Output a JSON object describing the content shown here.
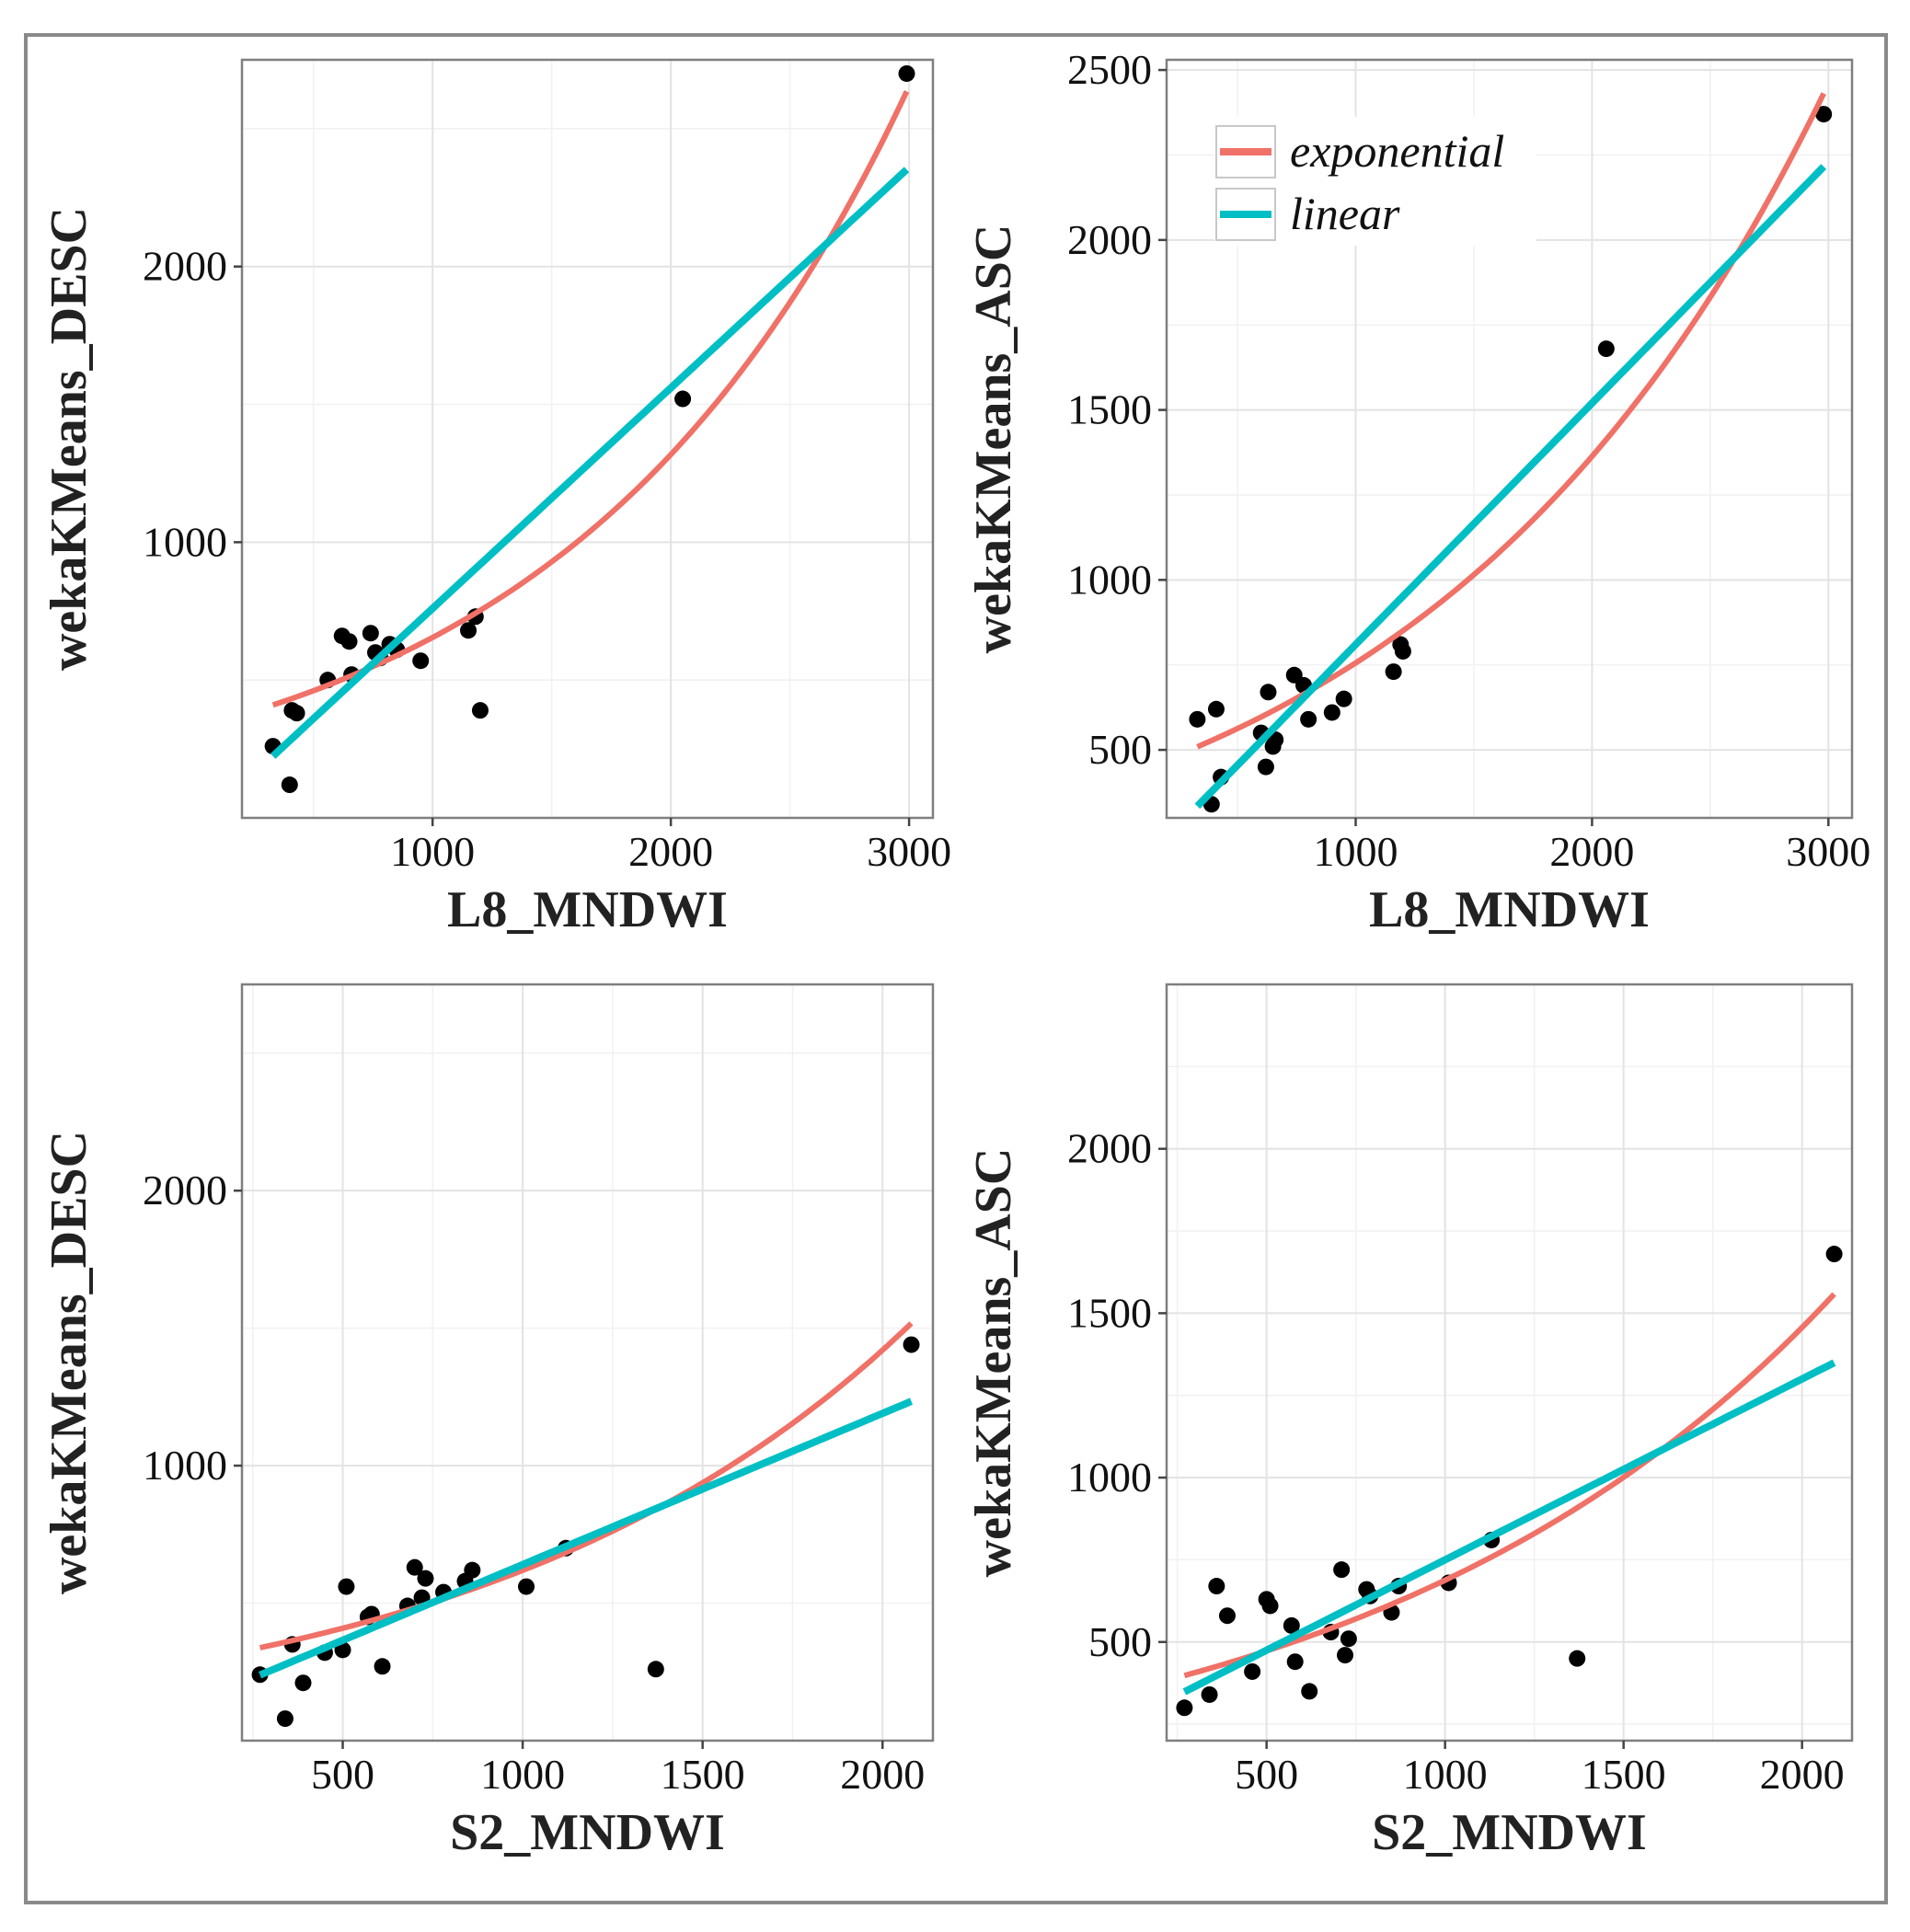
{
  "colors": {
    "exponential": "#f07167",
    "linear": "#00bfc4",
    "points": "#000000",
    "grid": "#e3e3e3",
    "panel_border": "#7f7f7f",
    "figure_border": "#8a8a8a"
  },
  "legend": {
    "placement": "top-left of top-right panel",
    "entries": [
      {
        "name": "exponential",
        "color": "#f07167"
      },
      {
        "name": "linear",
        "color": "#00bfc4"
      }
    ]
  },
  "chart_data": [
    {
      "type": "scatter",
      "xlabel": "L8_MNDWI",
      "ylabel": "wekaKMeans_DESC",
      "xlim": [
        200,
        3100
      ],
      "ylim": [
        0,
        2750
      ],
      "xticks": [
        1000,
        2000,
        3000
      ],
      "yticks": [
        1000,
        2000
      ],
      "grid": true,
      "points": [
        [
          330,
          260
        ],
        [
          400,
          120
        ],
        [
          410,
          390
        ],
        [
          430,
          380
        ],
        [
          560,
          500
        ],
        [
          620,
          660
        ],
        [
          650,
          640
        ],
        [
          660,
          520
        ],
        [
          740,
          670
        ],
        [
          760,
          600
        ],
        [
          780,
          580
        ],
        [
          820,
          630
        ],
        [
          850,
          610
        ],
        [
          950,
          570
        ],
        [
          1150,
          680
        ],
        [
          1180,
          730
        ],
        [
          1200,
          390
        ],
        [
          2050,
          1520
        ],
        [
          2990,
          2700
        ]
      ],
      "series": [
        {
          "name": "exponential",
          "fit": "exponential",
          "a": 325,
          "b": 0.0007,
          "x_range": [
            330,
            2990
          ]
        },
        {
          "name": "linear",
          "fit": "linear",
          "slope": 0.8,
          "intercept": -40,
          "x_range": [
            330,
            2990
          ]
        }
      ]
    },
    {
      "type": "scatter",
      "xlabel": "L8_MNDWI",
      "ylabel": "wekaKMeans_ASC",
      "xlim": [
        200,
        3100
      ],
      "ylim": [
        300,
        2530
      ],
      "xticks": [
        1000,
        2000,
        3000
      ],
      "yticks": [
        500,
        1000,
        1500,
        2000,
        2500
      ],
      "grid": true,
      "legend": true,
      "points": [
        [
          330,
          590
        ],
        [
          390,
          340
        ],
        [
          410,
          620
        ],
        [
          430,
          420
        ],
        [
          600,
          550
        ],
        [
          620,
          450
        ],
        [
          630,
          670
        ],
        [
          650,
          510
        ],
        [
          660,
          530
        ],
        [
          740,
          720
        ],
        [
          780,
          690
        ],
        [
          800,
          590
        ],
        [
          900,
          610
        ],
        [
          950,
          650
        ],
        [
          1160,
          730
        ],
        [
          1190,
          810
        ],
        [
          1200,
          790
        ],
        [
          2060,
          1680
        ],
        [
          2980,
          2370
        ]
      ],
      "series": [
        {
          "name": "exponential",
          "fit": "exponential",
          "a": 419,
          "b": 0.00059,
          "x_range": [
            330,
            2980
          ]
        },
        {
          "name": "linear",
          "fit": "linear",
          "slope": 0.71,
          "intercept": 100,
          "x_range": [
            330,
            2980
          ]
        }
      ]
    },
    {
      "type": "scatter",
      "xlabel": "S2_MNDWI",
      "ylabel": "wekaKMeans_DESC",
      "xlim": [
        220,
        2140
      ],
      "ylim": [
        0,
        2750
      ],
      "xticks": [
        500,
        1000,
        1500,
        2000
      ],
      "yticks": [
        1000,
        2000
      ],
      "grid": true,
      "points": [
        [
          270,
          240
        ],
        [
          340,
          80
        ],
        [
          360,
          350
        ],
        [
          390,
          210
        ],
        [
          450,
          320
        ],
        [
          500,
          330
        ],
        [
          510,
          560
        ],
        [
          570,
          450
        ],
        [
          580,
          460
        ],
        [
          610,
          270
        ],
        [
          680,
          490
        ],
        [
          700,
          630
        ],
        [
          720,
          520
        ],
        [
          730,
          590
        ],
        [
          780,
          540
        ],
        [
          840,
          580
        ],
        [
          860,
          620
        ],
        [
          1010,
          560
        ],
        [
          1120,
          700
        ],
        [
          1370,
          260
        ],
        [
          2080,
          1440
        ]
      ],
      "series": [
        {
          "name": "exponential",
          "fit": "exponential",
          "a": 270,
          "b": 0.00083,
          "x_range": [
            270,
            2080
          ]
        },
        {
          "name": "linear",
          "fit": "linear",
          "slope": 0.55,
          "intercept": 90,
          "x_range": [
            270,
            2080
          ]
        }
      ]
    },
    {
      "type": "scatter",
      "xlabel": "S2_MNDWI",
      "ylabel": "wekaKMeans_ASC",
      "xlim": [
        220,
        2140
      ],
      "ylim": [
        200,
        2500
      ],
      "xticks": [
        500,
        1000,
        1500,
        2000
      ],
      "yticks": [
        500,
        1000,
        1500,
        2000
      ],
      "grid": true,
      "points": [
        [
          270,
          300
        ],
        [
          340,
          340
        ],
        [
          360,
          670
        ],
        [
          390,
          580
        ],
        [
          460,
          410
        ],
        [
          500,
          630
        ],
        [
          510,
          610
        ],
        [
          570,
          550
        ],
        [
          580,
          440
        ],
        [
          620,
          350
        ],
        [
          680,
          530
        ],
        [
          710,
          720
        ],
        [
          720,
          460
        ],
        [
          730,
          510
        ],
        [
          780,
          660
        ],
        [
          790,
          640
        ],
        [
          850,
          590
        ],
        [
          870,
          670
        ],
        [
          1010,
          680
        ],
        [
          1130,
          810
        ],
        [
          1370,
          450
        ],
        [
          2090,
          1680
        ]
      ],
      "series": [
        {
          "name": "exponential",
          "fit": "exponential",
          "a": 325,
          "b": 0.00075,
          "x_range": [
            270,
            2090
          ]
        },
        {
          "name": "linear",
          "fit": "linear",
          "slope": 0.55,
          "intercept": 200,
          "x_range": [
            270,
            2090
          ]
        }
      ]
    }
  ]
}
